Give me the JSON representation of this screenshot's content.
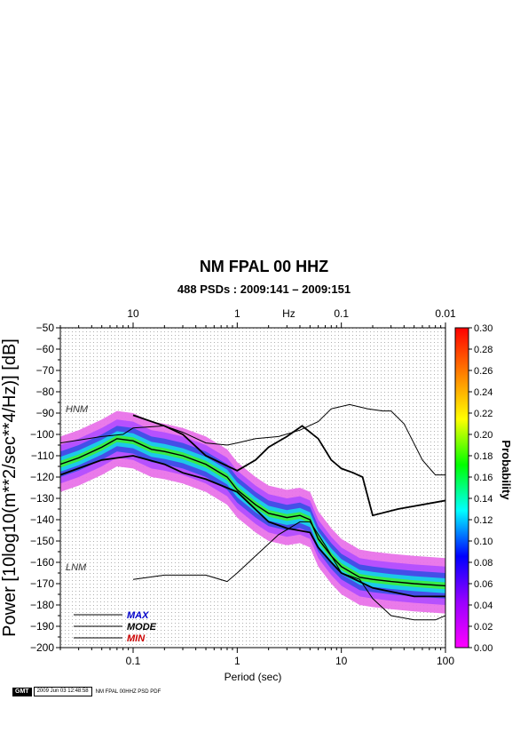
{
  "chart_data": {
    "type": "heatmap",
    "title": "NM FPAL 00 HHZ",
    "subtitle": "488 PSDs : 2009:141 – 2009:151",
    "xlabel": "Period (sec)",
    "ylabel": "Power [10log10(m**2/sec**4/Hz)] [dB]",
    "top_axis_label": "Hz",
    "x_scale": "log",
    "xlim": [
      0.02,
      100
    ],
    "ylim": [
      -200,
      -50
    ],
    "x_ticks": [
      0.1,
      1,
      10,
      100
    ],
    "x_tick_labels": [
      "0.1",
      "1",
      "10",
      "100"
    ],
    "top_ticks": [
      10,
      1,
      0.1,
      0.01
    ],
    "top_tick_labels": [
      "10",
      "1",
      "0.1",
      "0.01"
    ],
    "y_ticks": [
      -50,
      -60,
      -70,
      -80,
      -90,
      -100,
      -110,
      -120,
      -130,
      -140,
      -150,
      -160,
      -170,
      -180,
      -190,
      -200
    ],
    "y_tick_labels": [
      "−50",
      "−60",
      "−70",
      "−80",
      "−90",
      "−100",
      "−110",
      "−120",
      "−130",
      "−140",
      "−150",
      "−160",
      "−170",
      "−180",
      "−190",
      "−200"
    ],
    "grid": true,
    "reference_curves": [
      {
        "label": "HNM",
        "x": [
          0.02,
          0.05,
          0.08,
          0.1,
          0.2,
          0.3,
          0.5,
          0.8,
          1.0,
          1.5,
          2.5,
          4,
          6,
          8,
          12,
          18,
          25,
          30,
          40,
          60,
          80,
          100
        ],
        "y": [
          -104,
          -101,
          -100,
          -97,
          -96,
          -99,
          -104,
          -105,
          -104,
          -102,
          -101,
          -98,
          -94,
          -88,
          -86,
          -88,
          -89,
          -89,
          -95,
          -112,
          -119,
          -119
        ]
      },
      {
        "label": "LNM",
        "x": [
          0.1,
          0.2,
          0.5,
          0.8,
          1.0,
          1.5,
          2.5,
          4,
          5,
          7,
          10,
          15,
          20,
          30,
          50,
          80,
          100
        ],
        "y": [
          -168,
          -166,
          -166,
          -169,
          -165,
          -157,
          -147,
          -141,
          -141,
          -152,
          -165,
          -168,
          -177,
          -185,
          -187,
          -187,
          -185
        ]
      }
    ],
    "stat_curves": [
      {
        "label": "MAX",
        "color": "#0000cc",
        "x": [
          0.1,
          0.2,
          0.3,
          0.5,
          1,
          1.5,
          2,
          3,
          4.2,
          6,
          8,
          10,
          13,
          16,
          20,
          35,
          100
        ],
        "y": [
          -91,
          -96,
          -100,
          -110,
          -117,
          -112,
          -106,
          -101,
          -96,
          -102,
          -112,
          -116,
          -118,
          -120,
          -138,
          -135,
          -131
        ]
      },
      {
        "label": "MODE",
        "color": "#000000",
        "x": [
          0.02,
          0.03,
          0.05,
          0.07,
          0.1,
          0.15,
          0.2,
          0.3,
          0.5,
          0.8,
          1,
          1.5,
          2,
          3,
          4,
          5,
          6,
          8,
          10,
          15,
          20,
          30,
          50,
          100
        ],
        "y": [
          -114,
          -111,
          -106,
          -102,
          -103,
          -107,
          -108,
          -110,
          -114,
          -120,
          -126,
          -133,
          -137,
          -139,
          -138,
          -140,
          -149,
          -157,
          -162,
          -167,
          -168,
          -169,
          -170,
          -171
        ]
      },
      {
        "label": "MIN",
        "color": "#cc0000",
        "x": [
          0.02,
          0.05,
          0.1,
          0.2,
          0.3,
          0.5,
          1,
          2,
          3,
          5,
          6,
          8,
          10,
          20,
          50,
          100
        ],
        "y": [
          -119,
          -112,
          -110,
          -114,
          -118,
          -121,
          -127,
          -141,
          -144,
          -146,
          -153,
          -160,
          -165,
          -172,
          -176,
          -176
        ]
      }
    ],
    "legend_labels": [
      "MAX",
      "MODE",
      "MIN"
    ],
    "reference_labels": [
      "HNM",
      "LNM"
    ],
    "colorbar": {
      "label": "Probability",
      "range": [
        0,
        0.3
      ],
      "ticks": [
        "0.00",
        "0.02",
        "0.04",
        "0.06",
        "0.08",
        "0.10",
        "0.12",
        "0.14",
        "0.16",
        "0.18",
        "0.20",
        "0.22",
        "0.24",
        "0.26",
        "0.28",
        "0.30"
      ],
      "colors": [
        "#ff00ff",
        "#9900ff",
        "#0000ff",
        "#00ffff",
        "#00ff00",
        "#ffff00",
        "#ff8000",
        "#ff0000"
      ]
    }
  },
  "footer": {
    "gmt_label": "GMT",
    "timestamp": "2009 Jun 03 12:48:58",
    "caption": "NM FPAL 00HHZ PSD PDF"
  }
}
